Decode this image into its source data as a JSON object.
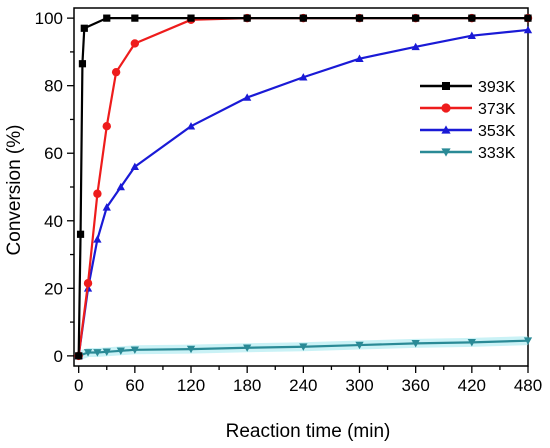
{
  "chart_data": {
    "type": "line",
    "title": "",
    "xlabel": "Reaction time (min)",
    "ylabel": "Conversion (%)",
    "xlim": [
      -5,
      480
    ],
    "ylim": [
      -3,
      103
    ],
    "x_ticks": [
      "0",
      "60",
      "120",
      "180",
      "240",
      "300",
      "360",
      "420",
      "480"
    ],
    "y_ticks": [
      "0",
      "20",
      "40",
      "60",
      "80",
      "100"
    ],
    "grid": false,
    "legend_position": "right",
    "series": [
      {
        "name": "393K",
        "color": "#000000",
        "marker": "square",
        "x": [
          0,
          2,
          4,
          6,
          30,
          60,
          120,
          180,
          240,
          300,
          360,
          420,
          480
        ],
        "y": [
          0,
          36,
          86.5,
          97,
          100,
          100,
          100,
          100,
          100,
          100,
          100,
          100,
          100
        ]
      },
      {
        "name": "373K",
        "color": "#ee1c1c",
        "marker": "circle",
        "x": [
          0,
          10,
          20,
          30,
          40,
          60,
          120,
          180,
          240,
          300,
          360,
          420,
          480
        ],
        "y": [
          0,
          21.5,
          48,
          68,
          84,
          92.5,
          99.5,
          100,
          100,
          100,
          100,
          100,
          100
        ]
      },
      {
        "name": "353K",
        "color": "#1a1ad6",
        "marker": "triangle-up",
        "x": [
          0,
          10,
          20,
          30,
          45,
          60,
          120,
          180,
          240,
          300,
          360,
          420,
          480
        ],
        "y": [
          0,
          20,
          34.5,
          44,
          50,
          56,
          68,
          76.5,
          82.5,
          88,
          91.5,
          94.8,
          96.5
        ]
      },
      {
        "name": "333K",
        "color": "#2a8a96",
        "marker": "triangle-down",
        "x": [
          0,
          10,
          20,
          30,
          45,
          60,
          120,
          180,
          240,
          300,
          360,
          420,
          480
        ],
        "y": [
          0,
          1,
          1,
          1.2,
          1.5,
          1.8,
          2,
          2.4,
          2.7,
          3.2,
          3.7,
          4,
          4.5
        ]
      }
    ]
  }
}
